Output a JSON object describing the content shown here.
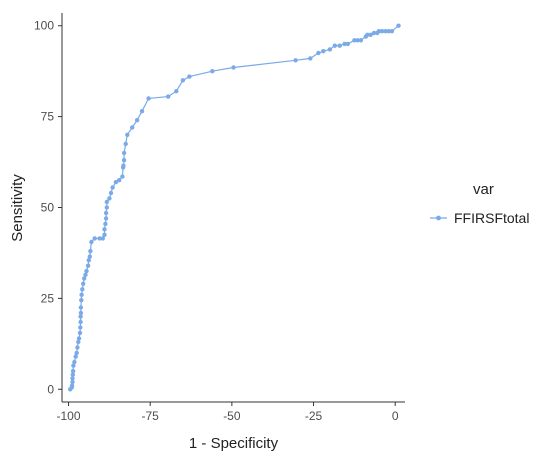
{
  "chart_data": {
    "type": "line",
    "title": "",
    "xlabel": "1 - Specificity",
    "ylabel": "Sensitivity",
    "xlim": [
      -102,
      3
    ],
    "ylim": [
      -3.5,
      103.5
    ],
    "x_ticks": [
      -100,
      -75,
      -50,
      -25,
      0
    ],
    "y_ticks": [
      0,
      25,
      50,
      75,
      100
    ],
    "x_tick_labels": [
      "-100",
      "-75",
      "-50",
      "-25",
      "0"
    ],
    "y_tick_labels": [
      "0",
      "25",
      "50",
      "75",
      "100"
    ],
    "grid": false,
    "legend": {
      "title": "var",
      "position": "right"
    },
    "series": [
      {
        "name": "FFIRSFtotal",
        "color": "#7aaae8",
        "points": [
          [
            -99.5,
            0
          ],
          [
            -99,
            0.5
          ],
          [
            -98.9,
            1
          ],
          [
            -98.8,
            2
          ],
          [
            -98.8,
            3
          ],
          [
            -98.7,
            4
          ],
          [
            -98.6,
            5
          ],
          [
            -98.5,
            6.5
          ],
          [
            -98.2,
            7.5
          ],
          [
            -97.8,
            9
          ],
          [
            -97.5,
            10
          ],
          [
            -97.3,
            11.5
          ],
          [
            -97,
            13
          ],
          [
            -96.8,
            14
          ],
          [
            -96.5,
            15.5
          ],
          [
            -96.4,
            17
          ],
          [
            -96.3,
            18.5
          ],
          [
            -96.3,
            20
          ],
          [
            -96.2,
            21
          ],
          [
            -96.2,
            22.5
          ],
          [
            -96.1,
            24.5
          ],
          [
            -96,
            26
          ],
          [
            -95.8,
            27.5
          ],
          [
            -95.5,
            29
          ],
          [
            -95.2,
            30.5
          ],
          [
            -94.8,
            31.5
          ],
          [
            -94.5,
            32.5
          ],
          [
            -94,
            34
          ],
          [
            -93.8,
            35.5
          ],
          [
            -93.5,
            36.5
          ],
          [
            -93.3,
            38
          ],
          [
            -93,
            40.5
          ],
          [
            -92,
            41.5
          ],
          [
            -90.5,
            41.5
          ],
          [
            -89.5,
            41.5
          ],
          [
            -89,
            42.5
          ],
          [
            -89,
            44
          ],
          [
            -88.7,
            45.5
          ],
          [
            -88.5,
            47
          ],
          [
            -88.5,
            48.5
          ],
          [
            -88.3,
            50
          ],
          [
            -88.3,
            51.5
          ],
          [
            -87.5,
            52.5
          ],
          [
            -87,
            54
          ],
          [
            -86.5,
            55.5
          ],
          [
            -85.5,
            57
          ],
          [
            -84.5,
            57.5
          ],
          [
            -83.5,
            58.5
          ],
          [
            -83.3,
            61
          ],
          [
            -83.2,
            61.5
          ],
          [
            -83,
            63
          ],
          [
            -83,
            65
          ],
          [
            -82.5,
            67.5
          ],
          [
            -82,
            70
          ],
          [
            -80.5,
            72
          ],
          [
            -79,
            74
          ],
          [
            -77.5,
            76.5
          ],
          [
            -75.5,
            80
          ],
          [
            -69.5,
            80.5
          ],
          [
            -67,
            82
          ],
          [
            -65,
            85
          ],
          [
            -63,
            86
          ],
          [
            -56,
            87.5
          ],
          [
            -49.5,
            88.5
          ],
          [
            -30.5,
            90.5
          ],
          [
            -26,
            91
          ],
          [
            -23.5,
            92.5
          ],
          [
            -22,
            93
          ],
          [
            -20,
            93.5
          ],
          [
            -18.5,
            94.5
          ],
          [
            -17,
            94.5
          ],
          [
            -15.5,
            95
          ],
          [
            -14.5,
            95
          ],
          [
            -12.5,
            96
          ],
          [
            -11.5,
            96
          ],
          [
            -10.5,
            96
          ],
          [
            -9,
            97
          ],
          [
            -8.5,
            97.5
          ],
          [
            -7.5,
            97.5
          ],
          [
            -6.5,
            98
          ],
          [
            -5.5,
            98
          ],
          [
            -5,
            98.5
          ],
          [
            -4,
            98.5
          ],
          [
            -3,
            98.5
          ],
          [
            -2,
            98.5
          ],
          [
            -1,
            98.5
          ],
          [
            1,
            100
          ]
        ]
      }
    ]
  }
}
